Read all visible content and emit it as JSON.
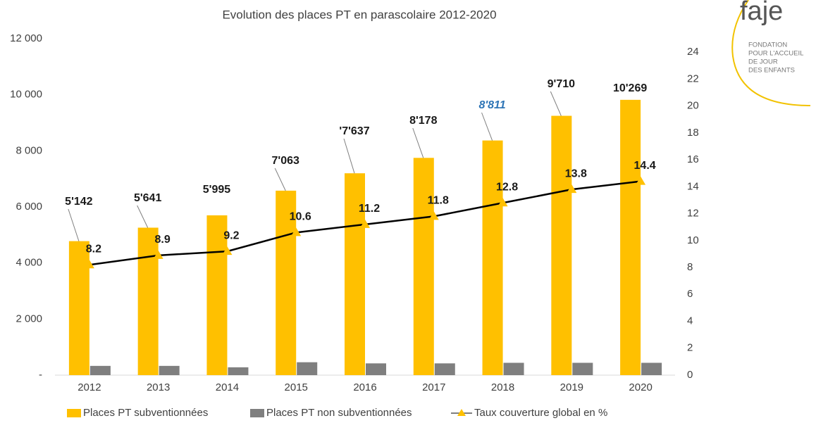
{
  "chart_data": {
    "type": "bar-line",
    "title": "Evolution des places PT en parascolaire 2012-2020",
    "categories": [
      "2012",
      "2013",
      "2014",
      "2015",
      "2016",
      "2017",
      "2018",
      "2019",
      "2020"
    ],
    "series": [
      {
        "name": "Places PT subventionnées",
        "color": "#ffc000",
        "values": [
          4780,
          5260,
          5700,
          6580,
          7200,
          7750,
          8370,
          9250,
          9820
        ]
      },
      {
        "name": "Places PT non subventionnées",
        "color": "#7f7f7f",
        "values": [
          330,
          330,
          280,
          460,
          420,
          420,
          440,
          440,
          440
        ]
      },
      {
        "name": "Taux couverture global en %",
        "color": "#000000",
        "marker_color": "#ffc000",
        "axis": "y2",
        "values": [
          8.2,
          8.9,
          9.2,
          10.6,
          11.2,
          11.8,
          12.8,
          13.8,
          14.4
        ]
      }
    ],
    "annotations": [
      "5'142",
      "5'641",
      "5'995",
      "7'063",
      "'7'637",
      "8'178",
      "8'811",
      "9'710",
      "10'269"
    ],
    "ylim": [
      0,
      12000
    ],
    "yticks": [
      {
        "value": 0,
        "label": "-"
      },
      {
        "value": 2000,
        "label": "2 000"
      },
      {
        "value": 4000,
        "label": "4 000"
      },
      {
        "value": 6000,
        "label": "6 000"
      },
      {
        "value": 8000,
        "label": "8 000"
      },
      {
        "value": 10000,
        "label": "10 000"
      },
      {
        "value": 12000,
        "label": "12 000"
      }
    ],
    "y2lim": [
      0,
      25
    ],
    "y2ticks": [
      0,
      2,
      4,
      6,
      8,
      10,
      12,
      14,
      16,
      18,
      20,
      22,
      24
    ],
    "grid": false
  },
  "logo": {
    "name": "faje",
    "lines": [
      "FONDATION",
      "POUR L'ACCUEIL",
      "DE JOUR",
      "DES ENFANTS"
    ]
  }
}
